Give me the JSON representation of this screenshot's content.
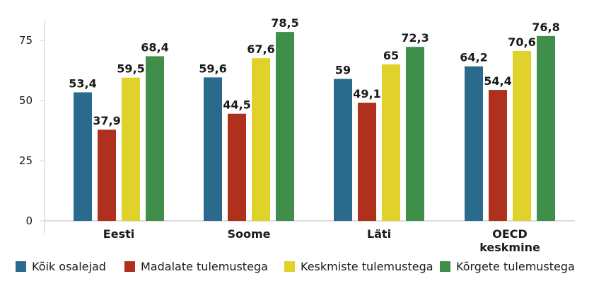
{
  "chart_data": {
    "type": "bar",
    "categories": [
      "Eesti",
      "Soome",
      "Läti",
      "OECD keskmine"
    ],
    "series": [
      {
        "name": "Kõik osalejad",
        "color": "#2a6a8c",
        "values": [
          53.4,
          59.6,
          59,
          64.2
        ],
        "labels": [
          "53,4",
          "59,6",
          "59",
          "64,2"
        ]
      },
      {
        "name": "Madalate tulemustega",
        "color": "#b0301e",
        "values": [
          37.9,
          44.5,
          49.1,
          54.4
        ],
        "labels": [
          "37,9",
          "44,5",
          "49,1",
          "54,4"
        ]
      },
      {
        "name": "Keskmiste tulemustega",
        "color": "#e0d22a",
        "values": [
          59.5,
          67.6,
          65,
          70.6
        ],
        "labels": [
          "59,5",
          "67,6",
          "65",
          "70,6"
        ]
      },
      {
        "name": "Kõrgete tulemustega",
        "color": "#3f8f4a",
        "values": [
          68.4,
          78.5,
          72.3,
          76.8
        ],
        "labels": [
          "68,4",
          "78,5",
          "72,3",
          "76,8"
        ]
      }
    ],
    "yticks": [
      0,
      25,
      50,
      75
    ],
    "ylim": [
      0,
      80
    ],
    "legend_position": "bottom",
    "grid": false
  }
}
